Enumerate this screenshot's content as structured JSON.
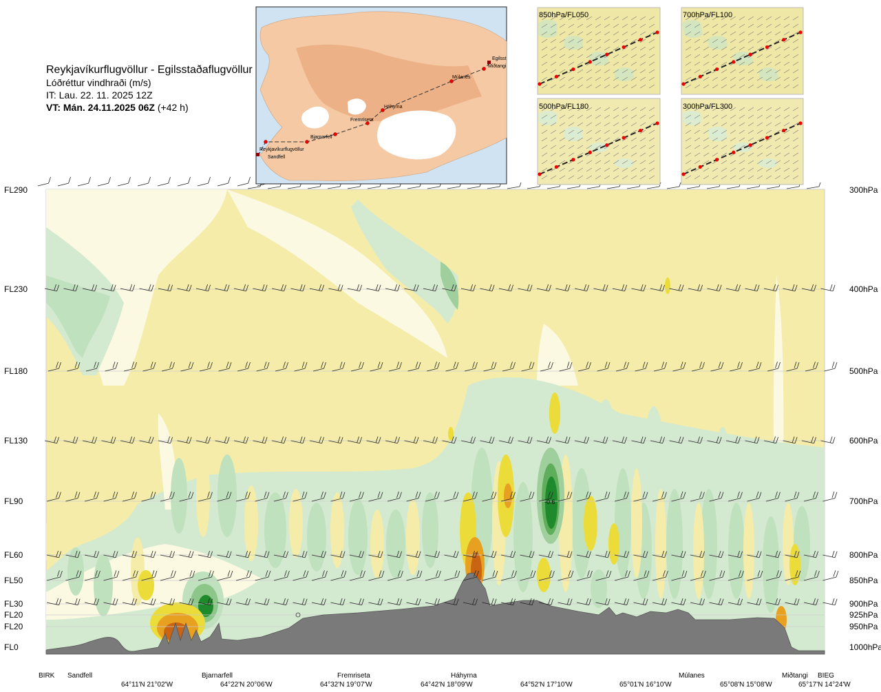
{
  "header": {
    "route": "Reykjavíkurflugvöllur - Egilsstaðaflugvöllur",
    "variable": "Lóðréttur vindhraði (m/s)",
    "init_time": "IT: Lau. 22. 11. 2025 12Z",
    "valid_prefix": "VT: Mán. 24.11.2025 06Z",
    "valid_suffix": " (+42 h)"
  },
  "map_inset": {
    "stations": [
      "Reykjavíkurflugvöllur",
      "Sandfell",
      "Bjarnarfell",
      "Fremriseta",
      "Háhyrna",
      "Múlanes",
      "Miðtangi",
      "Egilsst"
    ]
  },
  "level_insets": [
    "850hPa/FL050",
    "700hPa/FL100",
    "500hPa/FL180",
    "300hPa/FL300"
  ],
  "colors": {
    "background_yellow": "#f4eca8",
    "light_green": "#d3ead0",
    "green": "#9fcf9c",
    "dark_green": "#1f8a2c",
    "yellow": "#ecdc3a",
    "orange": "#e8a020",
    "dark_orange": "#c86412",
    "terrain": "#7a7a7a"
  },
  "chart_data": {
    "type": "heatmap",
    "title": "Lóðréttur vindhraði (m/s)",
    "left_axis_labels": [
      "FL290",
      "FL230",
      "FL180",
      "FL130",
      "FL90",
      "FL60",
      "FL50",
      "FL30",
      "FL20",
      "FL20",
      "FL0"
    ],
    "right_axis_labels": [
      "300hPa",
      "400hPa",
      "500hPa",
      "600hPa",
      "700hPa",
      "800hPa",
      "850hPa",
      "900hPa",
      "925hPa",
      "950hPa",
      "1000hPa"
    ],
    "pressure_levels_hPa": [
      300,
      400,
      500,
      600,
      700,
      800,
      850,
      900,
      925,
      950,
      1000
    ],
    "route_points": [
      "BIRK",
      "Sandfell",
      "Bjarnarfell",
      "Fremriseta",
      "Háhyrna",
      "Múlanes",
      "Miðtangi",
      "BIEG"
    ],
    "coordinate_labels": [
      "64°11'N 21°02'W",
      "64°22'N 20°06'W",
      "64°32'N 19°07'W",
      "64°42'N 18°09'W",
      "64°52'N 17°10'W",
      "65°01'N 16°10'W",
      "65°08'N 15°08'W",
      "65°17'N 14°24'W"
    ],
    "annotation": "-0.6",
    "grid": true
  }
}
